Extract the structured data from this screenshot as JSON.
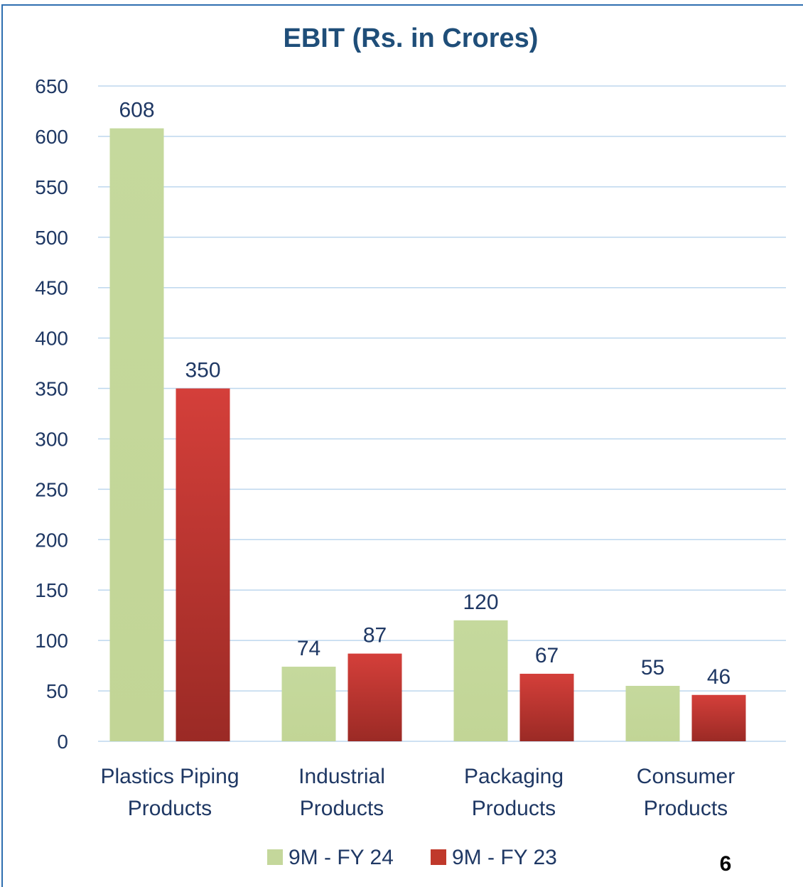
{
  "chart_data": {
    "type": "bar",
    "title": "EBIT (Rs. in Crores)",
    "xlabel": "",
    "ylabel": "",
    "categories": [
      [
        "Plastics Piping",
        "Products"
      ],
      [
        "Industrial",
        "Products"
      ],
      [
        "Packaging",
        "Products"
      ],
      [
        "Consumer",
        "Products"
      ]
    ],
    "series": [
      {
        "name": "9M - FY 24",
        "color": "#c4d79b",
        "values": [
          608,
          74,
          120,
          55
        ]
      },
      {
        "name": "9M - FY 23",
        "color": "#c0392b",
        "values": [
          350,
          87,
          67,
          46
        ]
      }
    ],
    "ylim": [
      0,
      650
    ],
    "ytick_step": 50,
    "grid": true,
    "legend_position": "bottom"
  },
  "page_number": "6"
}
